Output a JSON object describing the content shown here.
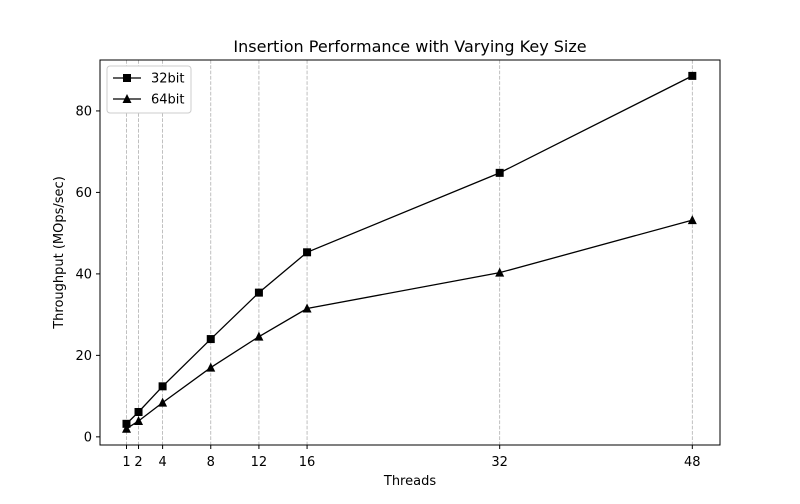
{
  "chart_data": {
    "type": "line",
    "title": "Insertion Performance with Varying Key Size",
    "xlabel": "Threads",
    "ylabel": "Throughput (MOps/sec)",
    "x": [
      1,
      2,
      4,
      8,
      12,
      16,
      32,
      48
    ],
    "xticks": [
      "1",
      "2",
      "4",
      "8",
      "12",
      "16",
      "32",
      "48"
    ],
    "yticks": [
      "0",
      "20",
      "40",
      "60",
      "80"
    ],
    "ytick_values": [
      0,
      20,
      40,
      60,
      80
    ],
    "xlim": [
      -1.2,
      50.3
    ],
    "ylim": [
      -2,
      92.5
    ],
    "grid": "vertical dashed at x ticks",
    "legend_position": "upper left",
    "series": [
      {
        "name": "32bit",
        "marker": "square",
        "color": "#000000",
        "values": [
          3.2,
          6.1,
          12.4,
          24.0,
          35.4,
          45.3,
          64.8,
          88.6
        ]
      },
      {
        "name": "64bit",
        "marker": "triangle",
        "color": "#000000",
        "values": [
          2.0,
          3.9,
          8.4,
          17.0,
          24.6,
          31.5,
          40.3,
          53.2
        ]
      }
    ]
  }
}
